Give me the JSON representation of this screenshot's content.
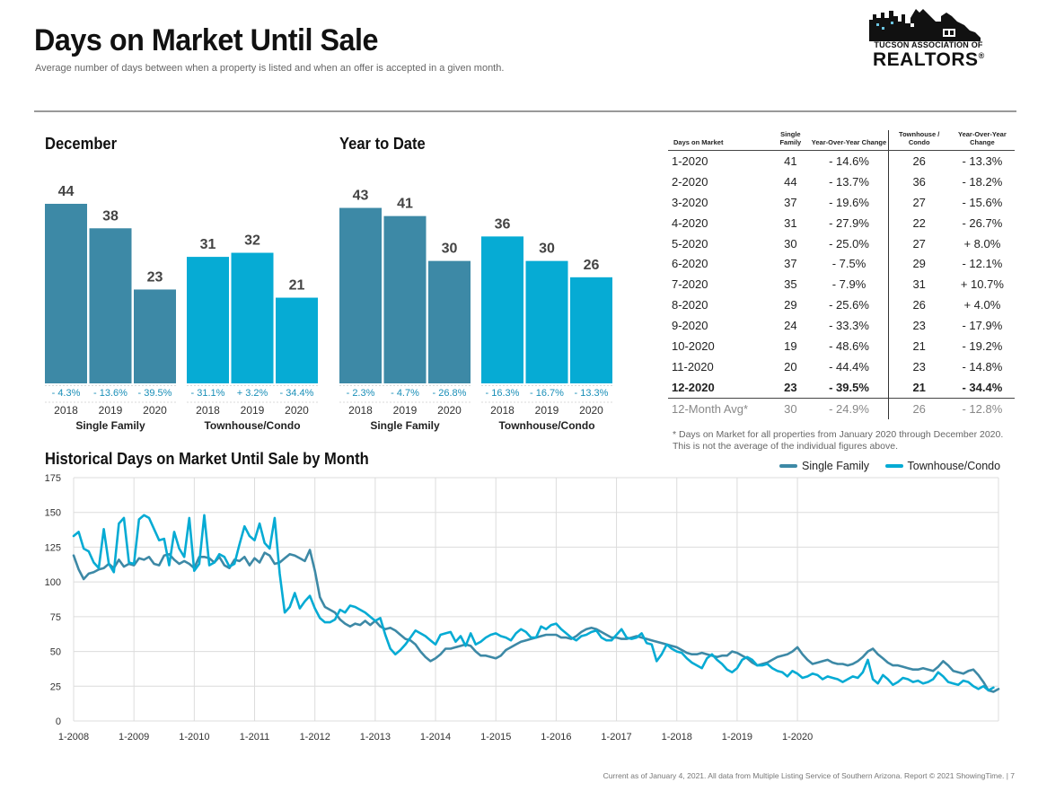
{
  "header": {
    "title": "Days on Market Until Sale",
    "subtitle": "Average number of days between when a property is listed and when an offer is accepted in a given month."
  },
  "logo": {
    "line1": "TUCSON ASSOCIATION OF",
    "line2": "REALTORS",
    "reg": "®"
  },
  "colors": {
    "single_family": "#3d89a6",
    "townhouse": "#06abd4"
  },
  "chart_data": [
    {
      "type": "bar",
      "title": "December",
      "groups": [
        {
          "label": "Single Family",
          "categories": [
            "2018",
            "2019",
            "2020"
          ],
          "values": [
            44,
            38,
            23
          ],
          "changes": [
            "- 4.3%",
            "- 13.6%",
            "- 39.5%"
          ]
        },
        {
          "label": "Townhouse/Condo",
          "categories": [
            "2018",
            "2019",
            "2020"
          ],
          "values": [
            31,
            32,
            21
          ],
          "changes": [
            "- 31.1%",
            "+ 3.2%",
            "- 34.4%"
          ]
        }
      ]
    },
    {
      "type": "bar",
      "title": "Year to Date",
      "groups": [
        {
          "label": "Single Family",
          "categories": [
            "2018",
            "2019",
            "2020"
          ],
          "values": [
            43,
            41,
            30
          ],
          "changes": [
            "- 2.3%",
            "- 4.7%",
            "- 26.8%"
          ]
        },
        {
          "label": "Townhouse/Condo",
          "categories": [
            "2018",
            "2019",
            "2020"
          ],
          "values": [
            36,
            30,
            26
          ],
          "changes": [
            "- 16.3%",
            "- 16.7%",
            "- 13.3%"
          ]
        }
      ]
    },
    {
      "type": "table",
      "headers": [
        "Days on Market",
        "Single Family",
        "Year-Over-Year Change",
        "Townhouse / Condo",
        "Year-Over-Year Change"
      ],
      "rows": [
        [
          "1-2020",
          "41",
          "- 14.6%",
          "26",
          "- 13.3%"
        ],
        [
          "2-2020",
          "44",
          "- 13.7%",
          "36",
          "- 18.2%"
        ],
        [
          "3-2020",
          "37",
          "- 19.6%",
          "27",
          "- 15.6%"
        ],
        [
          "4-2020",
          "31",
          "- 27.9%",
          "22",
          "- 26.7%"
        ],
        [
          "5-2020",
          "30",
          "- 25.0%",
          "27",
          "+ 8.0%"
        ],
        [
          "6-2020",
          "37",
          "- 7.5%",
          "29",
          "- 12.1%"
        ],
        [
          "7-2020",
          "35",
          "- 7.9%",
          "31",
          "+ 10.7%"
        ],
        [
          "8-2020",
          "29",
          "- 25.6%",
          "26",
          "+ 4.0%"
        ],
        [
          "9-2020",
          "24",
          "- 33.3%",
          "23",
          "- 17.9%"
        ],
        [
          "10-2020",
          "19",
          "- 48.6%",
          "21",
          "- 19.2%"
        ],
        [
          "11-2020",
          "20",
          "- 44.4%",
          "23",
          "- 14.8%"
        ],
        [
          "12-2020",
          "23",
          "- 39.5%",
          "21",
          "- 34.4%"
        ]
      ],
      "avg_row": [
        "12-Month Avg*",
        "30",
        "- 24.9%",
        "26",
        "- 12.8%"
      ],
      "footnote": "* Days on Market for all properties from January 2020 through December 2020. This is not the average of the individual figures above."
    },
    {
      "type": "line",
      "title": "Historical Days on Market Until Sale by Month",
      "ylim": [
        0,
        175
      ],
      "yticks": [
        0,
        25,
        50,
        75,
        100,
        125,
        150,
        175
      ],
      "x_start": "2008-01",
      "x_end": "2020-12",
      "xticks": [
        "1-2008",
        "1-2009",
        "1-2010",
        "1-2011",
        "1-2012",
        "1-2013",
        "1-2014",
        "1-2015",
        "1-2016",
        "1-2017",
        "1-2018",
        "1-2019",
        "1-2020"
      ],
      "grid": true,
      "legend": "top-right",
      "series": [
        {
          "name": "Single Family",
          "values": [
            119,
            109,
            102,
            106,
            107,
            109,
            110,
            113,
            110,
            116,
            111,
            113,
            112,
            117,
            116,
            118,
            113,
            112,
            119,
            120,
            116,
            113,
            115,
            113,
            110,
            118,
            118,
            117,
            114,
            118,
            112,
            110,
            116,
            115,
            118,
            112,
            117,
            114,
            121,
            119,
            113,
            114,
            117,
            120,
            119,
            117,
            115,
            123,
            108,
            89,
            82,
            80,
            78,
            73,
            70,
            68,
            70,
            69,
            72,
            69,
            72,
            68,
            66,
            67,
            65,
            62,
            59,
            58,
            55,
            50,
            46,
            43,
            45,
            48,
            52,
            52,
            53,
            54,
            55,
            54,
            50,
            47,
            47,
            46,
            45,
            47,
            51,
            53,
            55,
            57,
            58,
            59,
            60,
            61,
            62,
            62,
            62,
            60,
            60,
            59,
            61,
            64,
            66,
            67,
            66,
            64,
            62,
            60,
            60,
            59,
            59,
            60,
            61,
            60,
            59,
            58,
            57,
            56,
            55,
            54,
            53,
            51,
            49,
            48,
            48,
            49,
            48,
            47,
            46,
            47,
            47,
            50,
            49,
            47,
            45,
            42,
            40,
            41,
            42,
            44,
            46,
            47,
            48,
            50,
            53,
            48,
            44,
            41,
            42,
            43,
            44,
            42,
            41,
            41,
            40,
            41,
            43,
            46,
            50,
            52,
            48,
            45,
            42,
            40,
            40,
            39,
            38,
            37,
            37,
            38,
            37,
            36,
            39,
            43,
            40,
            36,
            35,
            34,
            36,
            37,
            33,
            28,
            22,
            21,
            23
          ]
        },
        {
          "name": "Townhouse/Condo",
          "values": [
            133,
            136,
            124,
            122,
            114,
            110,
            138,
            113,
            107,
            142,
            146,
            114,
            113,
            145,
            148,
            146,
            138,
            130,
            131,
            112,
            136,
            124,
            118,
            146,
            108,
            113,
            148,
            112,
            114,
            120,
            118,
            111,
            113,
            127,
            140,
            133,
            130,
            142,
            128,
            124,
            146,
            106,
            78,
            82,
            92,
            81,
            86,
            90,
            81,
            74,
            71,
            71,
            73,
            80,
            78,
            83,
            82,
            80,
            78,
            75,
            72,
            74,
            62,
            52,
            48,
            51,
            55,
            60,
            65,
            63,
            61,
            58,
            55,
            62,
            63,
            64,
            57,
            61,
            54,
            63,
            55,
            57,
            60,
            62,
            63,
            61,
            60,
            58,
            63,
            66,
            64,
            60,
            60,
            68,
            66,
            69,
            70,
            66,
            63,
            60,
            58,
            61,
            62,
            64,
            65,
            60,
            58,
            58,
            62,
            66,
            60,
            59,
            60,
            63,
            56,
            55,
            43,
            48,
            55,
            52,
            50,
            49,
            45,
            42,
            40,
            38,
            45,
            48,
            44,
            41,
            37,
            35,
            38,
            44,
            46,
            44,
            40,
            40,
            41,
            38,
            36,
            35,
            32,
            36,
            34,
            31,
            32,
            34,
            33,
            30,
            32,
            31,
            30,
            28,
            30,
            32,
            31,
            35,
            44,
            30,
            27,
            33,
            30,
            26,
            28,
            31,
            30,
            28,
            29,
            27,
            28,
            30,
            35,
            32,
            28,
            27,
            26,
            29,
            28,
            25,
            23,
            25,
            22,
            24
          ]
        }
      ]
    }
  ],
  "footer": "Current as of January 4, 2021. All data from Multiple Listing Service of Southern Arizona. Report © 2021 ShowingTime.  |  7"
}
